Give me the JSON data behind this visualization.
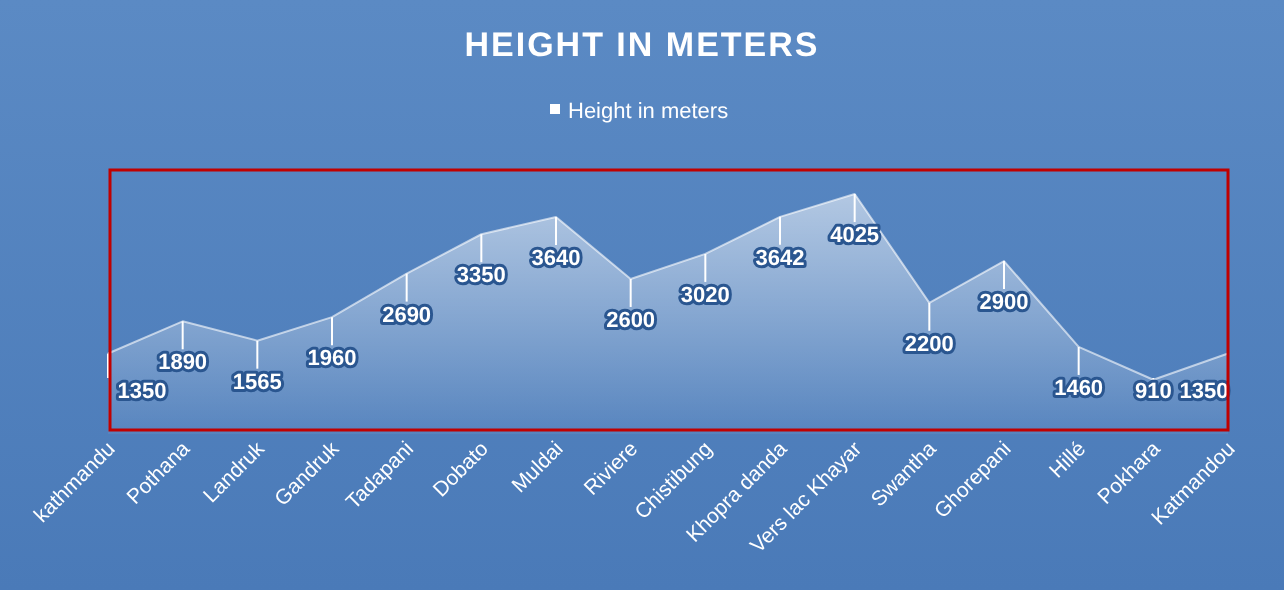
{
  "chart_data": {
    "type": "area",
    "title": "HEIGHT IN METERS",
    "categories": [
      "kathmandu",
      "Pothana",
      "Landruk",
      "Gandruk",
      "Tadapani",
      "Dobato",
      "Muldai",
      "Riviere",
      "Chistibung",
      "Khopra danda",
      "Vers lac Khayar",
      "Swantha",
      "Ghorepani",
      "Hillé",
      "Pokhara",
      "Katmandou"
    ],
    "series": [
      {
        "name": "Height in meters",
        "color": "#ffffff",
        "values": [
          1350,
          1890,
          1565,
          1960,
          2690,
          3350,
          3640,
          2600,
          3020,
          3642,
          4025,
          2200,
          2900,
          1460,
          910,
          1350
        ]
      }
    ],
    "data_labels": true,
    "legend": "top"
  }
}
